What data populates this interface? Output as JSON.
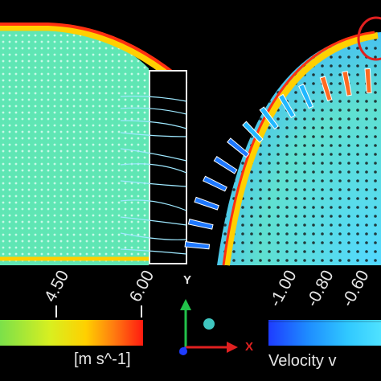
{
  "left_scale": {
    "ticks": [
      "4.50",
      "6.00"
    ],
    "units": "[m s^-1]"
  },
  "right_scale": {
    "ticks": [
      "-1.00",
      "-0.80",
      "-0.60"
    ],
    "title": "Velocity v"
  },
  "axes": {
    "y_label": "Y",
    "x_label": "X",
    "z_label": ""
  },
  "colors": {
    "flow_field": "#5fe6b4",
    "boundary_hot": "#ff3010",
    "boundary_warm": "#ffd000",
    "streamlines": "#9ee8ff",
    "blade_cold": "#1e78ff",
    "highlight_circle": "#e02020",
    "y_axis": "#22c24a",
    "x_axis": "#e02020",
    "z_axis": "#1f3cff"
  }
}
